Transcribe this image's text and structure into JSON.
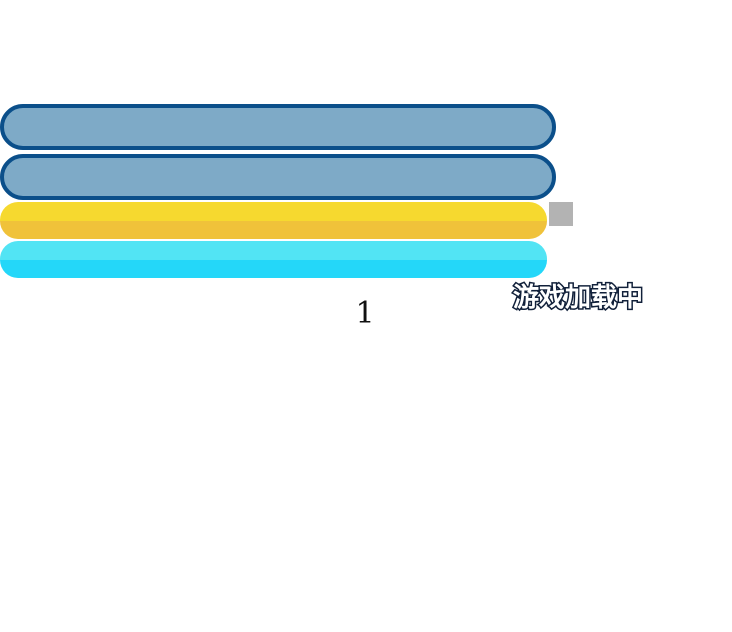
{
  "loading": {
    "text": "游戏加载中",
    "text_color": "#ffffff",
    "text_outline_color": "#11203a"
  },
  "counter": {
    "value": "1"
  },
  "frames": {
    "border_color": "#0b4f8a",
    "fill_color": "#7eaac7"
  },
  "bars": {
    "yellow": {
      "color_top": "#f6d92f",
      "color_bottom": "#f0c23a"
    },
    "cyan": {
      "color_top": "#52e4f4",
      "color_bottom": "#24d7f9"
    }
  },
  "indicator": {
    "color": "#b3b3b3"
  }
}
